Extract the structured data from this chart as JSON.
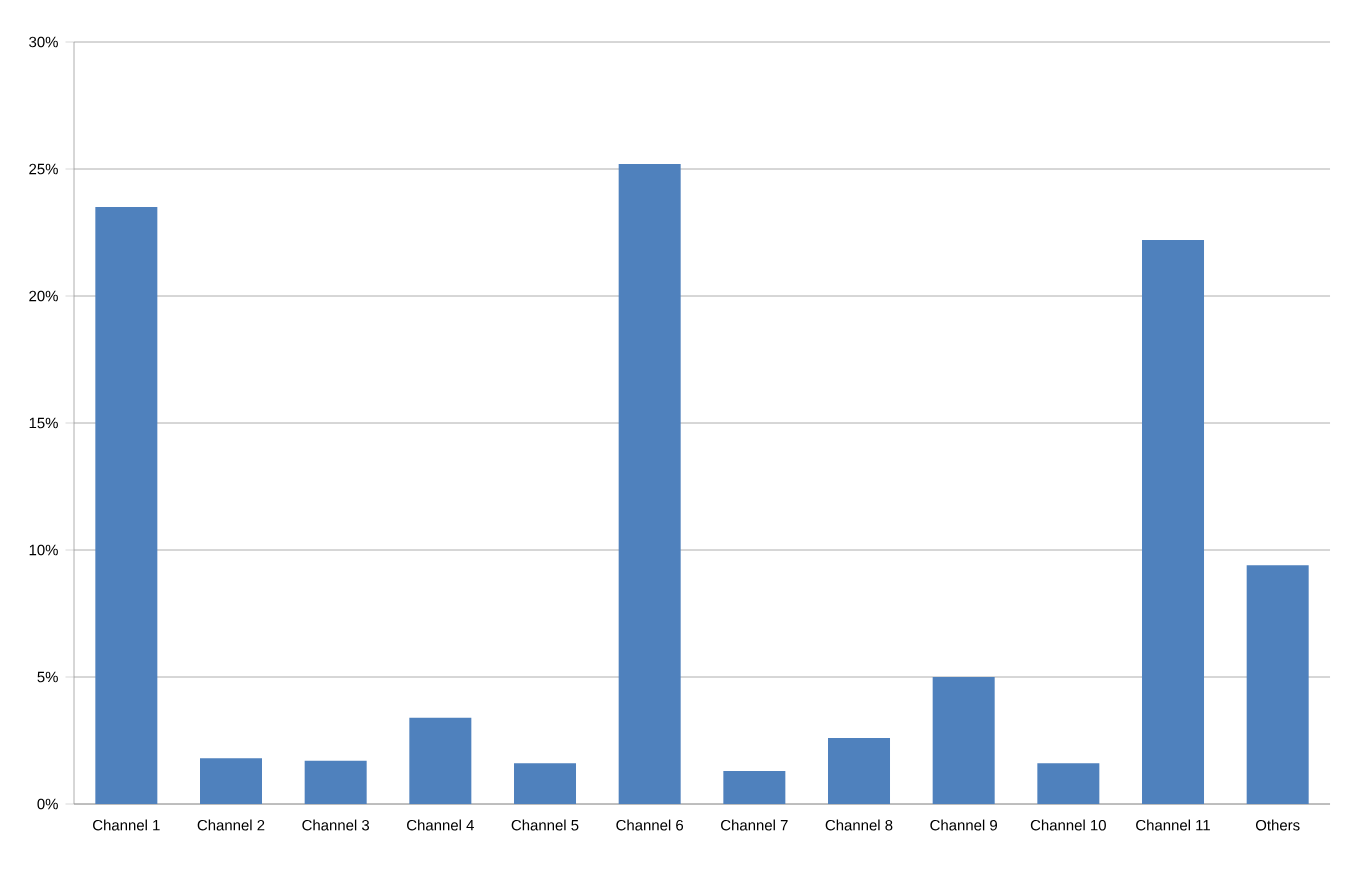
{
  "chart_data": {
    "type": "bar",
    "categories": [
      "Channel 1",
      "Channel 2",
      "Channel 3",
      "Channel 4",
      "Channel 5",
      "Channel 6",
      "Channel 7",
      "Channel 8",
      "Channel 9",
      "Channel 10",
      "Channel 11",
      "Others"
    ],
    "values": [
      23.5,
      1.8,
      1.7,
      3.4,
      1.6,
      25.2,
      1.3,
      2.6,
      5.0,
      1.6,
      22.2,
      9.4
    ],
    "color": "#4f81bd",
    "ylim": [
      0,
      30
    ],
    "yticks": [
      {
        "value": 0,
        "label": "0%"
      },
      {
        "value": 5,
        "label": "5%"
      },
      {
        "value": 10,
        "label": "10%"
      },
      {
        "value": 15,
        "label": "15%"
      },
      {
        "value": 20,
        "label": "20%"
      },
      {
        "value": 25,
        "label": "25%"
      },
      {
        "value": 30,
        "label": "30%"
      }
    ],
    "grid": "y"
  }
}
